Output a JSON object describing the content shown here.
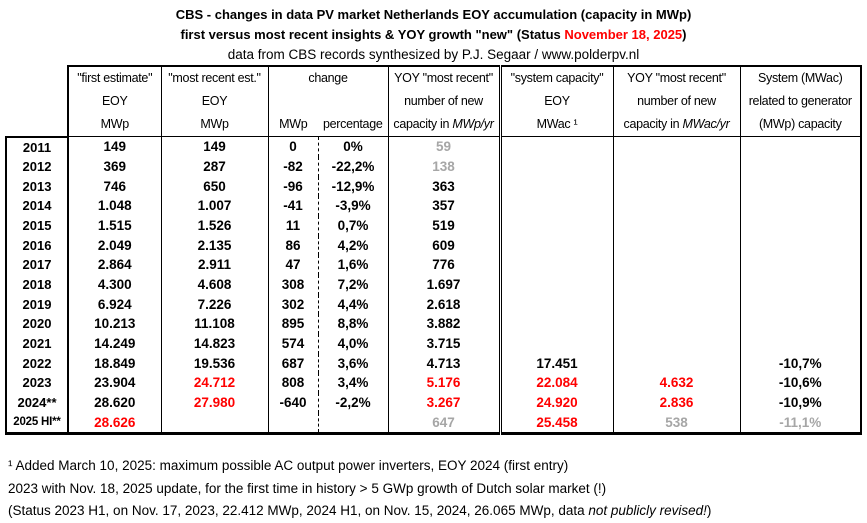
{
  "title": {
    "line1": "CBS - changes in data PV market Netherlands EOY accumulation (capacity in MWp)",
    "line2_prefix": "first versus most recent insights & YOY growth \"new\" (Status ",
    "line2_date": "November 18, 2025",
    "line2_suffix": ")",
    "line3": "data from CBS records synthesized by P.J. Segaar / www.polderpv.nl"
  },
  "colors": {
    "accent_red": "#ff0000",
    "muted_gray": "#a6a6a6",
    "border_black": "#000000"
  },
  "table": {
    "headers": {
      "first": [
        "\"first estimate\"",
        "EOY",
        "MWp"
      ],
      "recent": [
        "\"most recent est.\"",
        "EOY",
        "MWp"
      ],
      "change": {
        "label": "change",
        "sub": [
          "MWp",
          "percentage"
        ]
      },
      "yoy_mwp": {
        "line1": "YOY \"most recent\"",
        "line2": "number  of new",
        "line3_prefix": "capacity in ",
        "line3_italic": "MWp/yr"
      },
      "sys_cap": [
        "\"system capacity\"",
        "EOY",
        "MWac ¹"
      ],
      "yoy_mwac": {
        "line1": "YOY \"most recent\"",
        "line2": "number of new",
        "line3_prefix": "capacity in ",
        "line3_italic": "MWac/yr"
      },
      "ratio": [
        "System (MWac)",
        "related to generator",
        "(MWp) capacity"
      ]
    }
  },
  "chart_data": {
    "type": "table",
    "title": "CBS - changes in data PV market Netherlands EOY accumulation (capacity in MWp)",
    "columns": [
      "year",
      "\"first estimate\" EOY (MWp)",
      "\"most recent est.\" EOY (MWp)",
      "change (MWp)",
      "change (percentage)",
      "YOY \"most recent\" number of new capacity (MWp/yr)",
      "\"system capacity\" EOY (MWac)",
      "YOY \"most recent\" number of new capacity (MWac/yr)",
      "System (MWac) related to generator (MWp) capacity"
    ],
    "rows": [
      [
        "2011",
        "149",
        "149",
        "0",
        "0%",
        "59",
        "",
        "",
        ""
      ],
      [
        "2012",
        "369",
        "287",
        "-82",
        "-22,2%",
        "138",
        "",
        "",
        ""
      ],
      [
        "2013",
        "746",
        "650",
        "-96",
        "-12,9%",
        "363",
        "",
        "",
        ""
      ],
      [
        "2014",
        "1.048",
        "1.007",
        "-41",
        "-3,9%",
        "357",
        "",
        "",
        ""
      ],
      [
        "2015",
        "1.515",
        "1.526",
        "11",
        "0,7%",
        "519",
        "",
        "",
        ""
      ],
      [
        "2016",
        "2.049",
        "2.135",
        "86",
        "4,2%",
        "609",
        "",
        "",
        ""
      ],
      [
        "2017",
        "2.864",
        "2.911",
        "47",
        "1,6%",
        "776",
        "",
        "",
        ""
      ],
      [
        "2018",
        "4.300",
        "4.608",
        "308",
        "7,2%",
        "1.697",
        "",
        "",
        ""
      ],
      [
        "2019",
        "6.924",
        "7.226",
        "302",
        "4,4%",
        "2.618",
        "",
        "",
        ""
      ],
      [
        "2020",
        "10.213",
        "11.108",
        "895",
        "8,8%",
        "3.882",
        "",
        "",
        ""
      ],
      [
        "2021",
        "14.249",
        "14.823",
        "574",
        "4,0%",
        "3.715",
        "",
        "",
        ""
      ],
      [
        "2022",
        "18.849",
        "19.536",
        "687",
        "3,6%",
        "4.713",
        "17.451",
        "",
        "-10,7%"
      ],
      [
        "2023",
        "23.904",
        "24.712",
        "808",
        "3,4%",
        "5.176",
        "22.084",
        "4.632",
        "-10,6%"
      ],
      [
        "2024**",
        "28.620",
        "27.980",
        "-640",
        "-2,2%",
        "3.267",
        "24.920",
        "2.836",
        "-10,9%"
      ],
      [
        "2025 HI**",
        "28.626",
        "",
        "",
        "",
        "647",
        "25.458",
        "538",
        "-11,1%"
      ]
    ],
    "cell_colors": {
      "0": {
        "5": "gray"
      },
      "1": {
        "5": "gray"
      },
      "12": {
        "2": "red",
        "5": "red",
        "6": "red",
        "7": "red"
      },
      "13": {
        "2": "red",
        "5": "red",
        "6": "red",
        "7": "red"
      },
      "14": {
        "1": "red",
        "5": "gray",
        "6": "red",
        "7": "gray",
        "8": "gray"
      }
    }
  },
  "footnotes": {
    "f1": "¹ Added March 10, 2025: maximum possible AC output power inverters, EOY 2024 (first entry)",
    "f2": "2023 with Nov. 18, 2025 update, for the first time in history > 5 GWp growth of Dutch solar market (!)",
    "f3_prefix": "(Status 2023 H1, on Nov. 17, 2023, 22.412 MWp,  2024 H1, on Nov. 15, 2024, 26.065 MWp, data ",
    "f3_italic": "not publicly revised!",
    "f3_suffix": ")"
  }
}
